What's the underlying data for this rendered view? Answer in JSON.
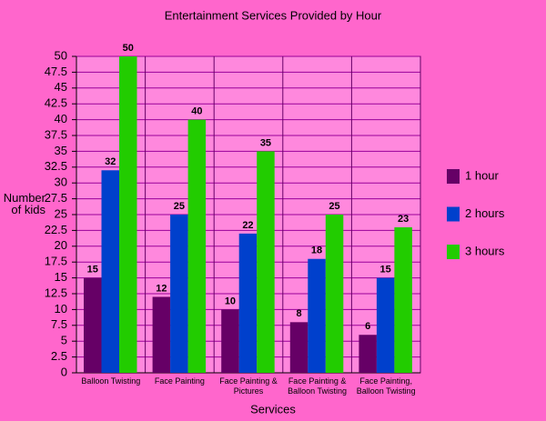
{
  "chart_data": {
    "type": "bar",
    "title": "Entertainment Services Provided by Hour",
    "x_label": "Services",
    "y_label": "Number of kids",
    "categories": [
      "Balloon Twisting",
      "Face Painting",
      "Face Painting & Pictures",
      "Face Painting & Balloon Twisting",
      "Face Painting, Balloon Twisting"
    ],
    "series": [
      {
        "name": "1 hour",
        "color": "#660066",
        "values": [
          15,
          12,
          10,
          8,
          6
        ]
      },
      {
        "name": "2 hours",
        "color": "#0040cc",
        "values": [
          32,
          25,
          22,
          18,
          15
        ]
      },
      {
        "name": "3 hours",
        "color": "#22cc00",
        "values": [
          50,
          40,
          35,
          25,
          23
        ]
      }
    ],
    "ylim": [
      0,
      50
    ],
    "yticks": [
      0,
      2.5,
      5,
      7.5,
      10,
      12.5,
      15,
      17.5,
      20,
      22.5,
      25,
      27.5,
      30,
      32.5,
      35,
      37.5,
      40,
      42.5,
      45,
      47.5,
      50
    ],
    "grid": true,
    "legend": "right"
  }
}
